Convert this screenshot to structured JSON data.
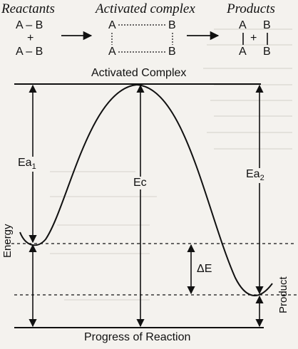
{
  "scheme": {
    "reactants_title": "Reactants",
    "activated_title": "Activated complex",
    "products_title": "Products",
    "reactant_top": "A – B",
    "plus": "+",
    "reactant_bottom": "A – B",
    "complex_a_top": "A",
    "complex_b_top": "B",
    "complex_a_bottom": "A",
    "complex_b_bottom": "B",
    "product_a_top": "A",
    "product_b_top": "B",
    "product_a_bottom": "A",
    "product_b_bottom": "B",
    "product_plus": "+"
  },
  "diagram": {
    "activated_complex_label": "Activated Complex",
    "ea1_label": "Ea",
    "ea1_sub": "1",
    "ec_label": "Ec",
    "ea2_label": "Ea",
    "ea2_sub": "2",
    "delta_e_label": "ΔE",
    "energy_axis_label": "Energy",
    "product_axis_label": "Product",
    "x_axis_label": "Progress of Reaction"
  },
  "colors": {
    "ink": "#111111",
    "paper": "#f4f2ee",
    "ghost_text": "#c9c6bf"
  }
}
